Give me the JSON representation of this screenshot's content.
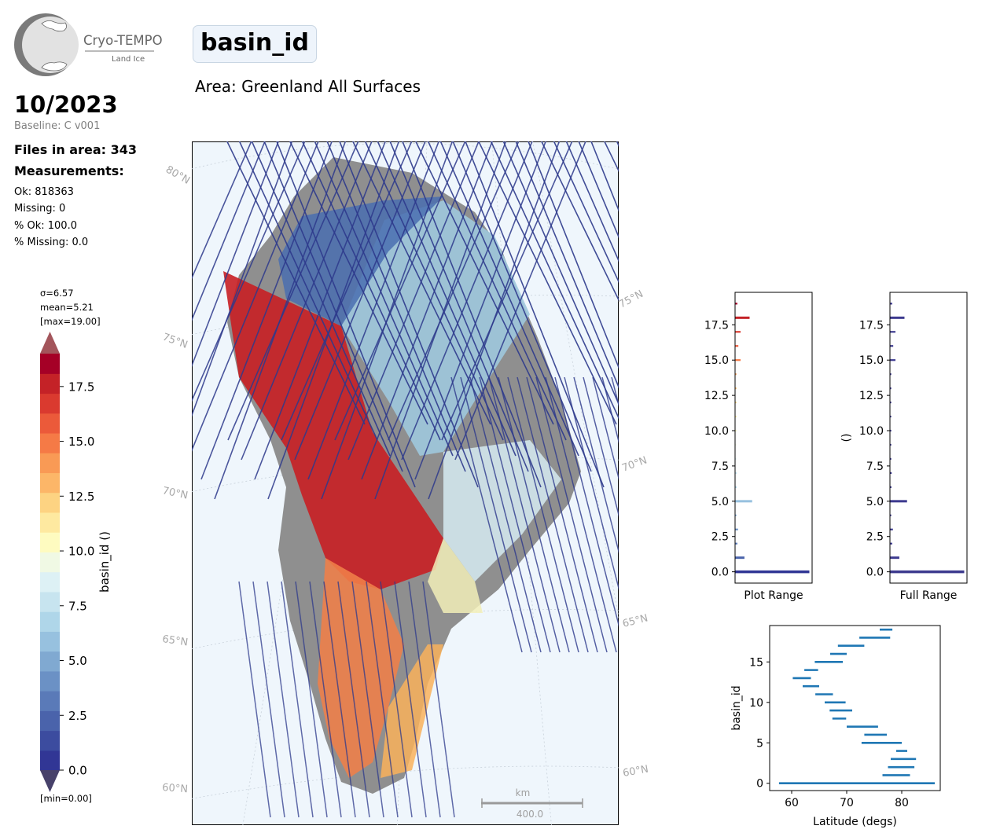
{
  "logo": {
    "name": "Cryo-TEMPO",
    "subtitle": "Land Ice"
  },
  "header": {
    "title": "basin_id",
    "area": "Area: Greenland All Surfaces",
    "period": "10/2023",
    "baseline": "Baseline: C v001",
    "files": "Files in area: 343",
    "measurements_title": "Measurements:",
    "ok": "Ok: 818363",
    "missing": "Missing: 0",
    "pct_ok": "% Ok: 100.0",
    "pct_missing": "% Missing: 0.0"
  },
  "colorbar": {
    "stats": [
      "σ=6.57",
      "mean=5.21",
      "[max=19.00]"
    ],
    "min_label": "[min=0.00]",
    "label": "basin_id ()",
    "ticks": [
      "0.0",
      "2.5",
      "5.0",
      "7.5",
      "10.0",
      "12.5",
      "15.0",
      "17.5"
    ],
    "colormap": "RdYlBu_r",
    "colors": [
      "#313695",
      "#3c4c9f",
      "#4a63ab",
      "#5a7ab8",
      "#6b91c5",
      "#80a9d1",
      "#97c1df",
      "#afd6e9",
      "#c7e4ef",
      "#ddf1f5",
      "#f0f9e4",
      "#fefbc0",
      "#fee9a0",
      "#fdd382",
      "#fcb668",
      "#f99a55",
      "#f57a46",
      "#eb5a3a",
      "#da3a2f",
      "#c42227",
      "#a50026"
    ],
    "vmin": 0,
    "vmax": 19
  },
  "map": {
    "lat_labels": [
      "80°N",
      "75°N",
      "70°N",
      "65°N",
      "60°N"
    ],
    "scalebar_unit": "km",
    "scalebar_value": "400.0",
    "track_color": "#2e3a8c",
    "background": "#eff6fc"
  },
  "chart_data": [
    {
      "type": "bar",
      "orientation": "horizontal",
      "xlabel": "Plot Range",
      "ylabel": "",
      "ylim": [
        -0.8,
        19.8
      ],
      "yticks": [
        "0.0",
        "2.5",
        "5.0",
        "7.5",
        "10.0",
        "12.5",
        "15.0",
        "17.5"
      ],
      "bins": [
        0,
        1,
        2,
        3,
        4,
        5,
        6,
        7,
        8,
        9,
        10,
        11,
        12,
        13,
        14,
        15,
        16,
        17,
        18,
        19
      ],
      "values": [
        230000,
        28000,
        6000,
        8000,
        2500,
        52000,
        3500,
        4200,
        2000,
        900,
        400,
        350,
        500,
        1200,
        3000,
        16000,
        9000,
        16000,
        44000,
        6000
      ],
      "colors": [
        "#313695",
        "#4a63ab",
        "#5a7ab8",
        "#6b91c5",
        "#80a9d1",
        "#97c1df",
        "#afd6e9",
        "#c7e4ef",
        "#ddf1f5",
        "#f0f9e4",
        "#fefbc0",
        "#fee9a0",
        "#fdd382",
        "#fcb668",
        "#f99a55",
        "#f57a46",
        "#eb5a3a",
        "#da3a2f",
        "#c42227",
        "#a50026"
      ]
    },
    {
      "type": "bar",
      "orientation": "horizontal",
      "xlabel": "Full Range",
      "ylabel": "()",
      "ylim": [
        -0.8,
        19.8
      ],
      "yticks": [
        "0.0",
        "2.5",
        "5.0",
        "7.5",
        "10.0",
        "12.5",
        "15.0",
        "17.5"
      ],
      "bins": [
        0,
        1,
        2,
        3,
        4,
        5,
        6,
        7,
        8,
        9,
        10,
        11,
        12,
        13,
        14,
        15,
        16,
        17,
        18,
        19
      ],
      "values": [
        230000,
        28000,
        6000,
        8000,
        2500,
        52000,
        3500,
        4200,
        2000,
        900,
        400,
        350,
        500,
        1200,
        3000,
        16000,
        9000,
        16000,
        44000,
        6000
      ],
      "color": "#3d3a8f"
    },
    {
      "type": "range",
      "xlabel": "Latitude (degs)",
      "ylabel": "basin_id",
      "xlim": [
        56,
        87
      ],
      "ylim": [
        -0.9,
        19.5
      ],
      "xticks": [
        "60",
        "70",
        "80"
      ],
      "yticks": [
        "0",
        "5",
        "10",
        "15"
      ],
      "color": "#1f77b4",
      "ranges": [
        {
          "basin": 0,
          "min": 57.7,
          "max": 86.0
        },
        {
          "basin": 1,
          "min": 76.5,
          "max": 81.5
        },
        {
          "basin": 2,
          "min": 77.5,
          "max": 82.3
        },
        {
          "basin": 3,
          "min": 78.0,
          "max": 82.6
        },
        {
          "basin": 4,
          "min": 79.0,
          "max": 81.0
        },
        {
          "basin": 5,
          "min": 72.7,
          "max": 80.0
        },
        {
          "basin": 6,
          "min": 73.2,
          "max": 77.3
        },
        {
          "basin": 7,
          "min": 70.0,
          "max": 75.7
        },
        {
          "basin": 8,
          "min": 67.4,
          "max": 69.9
        },
        {
          "basin": 9,
          "min": 66.9,
          "max": 71.0
        },
        {
          "basin": 10,
          "min": 66.0,
          "max": 69.8
        },
        {
          "basin": 11,
          "min": 64.3,
          "max": 67.5
        },
        {
          "basin": 12,
          "min": 62.0,
          "max": 65.0
        },
        {
          "basin": 13,
          "min": 60.2,
          "max": 63.5
        },
        {
          "basin": 14,
          "min": 62.3,
          "max": 64.8
        },
        {
          "basin": 15,
          "min": 64.2,
          "max": 69.3
        },
        {
          "basin": 16,
          "min": 67.0,
          "max": 70.0
        },
        {
          "basin": 17,
          "min": 68.4,
          "max": 73.2
        },
        {
          "basin": 18,
          "min": 72.3,
          "max": 77.9
        },
        {
          "basin": 19,
          "min": 76.0,
          "max": 78.3
        }
      ]
    }
  ]
}
